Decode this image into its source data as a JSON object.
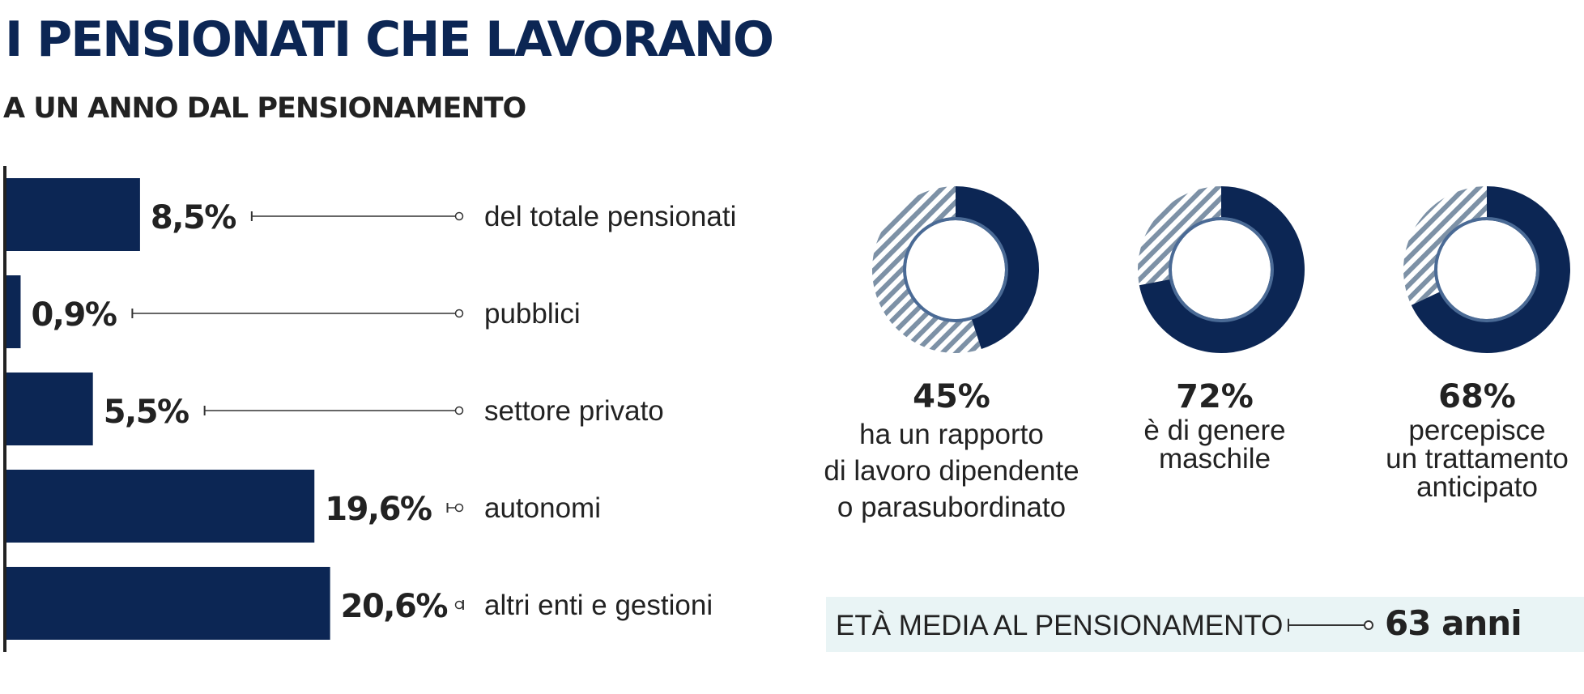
{
  "title": "I PENSIONATI CHE LAVORANO",
  "subtitle": "A UN ANNO DAL PENSIONAMENTO",
  "colors": {
    "navy": "#0c2654",
    "hatch": "#7d91a6",
    "ring_edge": "#4a6a95",
    "age_box": "#e9f4f5",
    "text": "#222222"
  },
  "chart_data": [
    {
      "type": "bar",
      "orientation": "horizontal",
      "categories": [
        "del totale pensionati",
        "pubblici",
        "settore privato",
        "autonomi",
        "altri enti e gestioni"
      ],
      "values": [
        8.5,
        0.9,
        5.5,
        19.6,
        20.6
      ],
      "value_labels": [
        "8,5%",
        "0,9%",
        "5,5%",
        "19,6%",
        "20,6%"
      ],
      "unit": "%"
    },
    {
      "type": "pie",
      "style": "donut",
      "slices": [
        {
          "value": 45,
          "value_label": "45%",
          "label": "ha un rapporto\ndi lavoro dipendente\no parasubordinato"
        },
        {
          "value": 72,
          "value_label": "72%",
          "label": "è di genere\nmaschile"
        },
        {
          "value": 68,
          "value_label": "68%",
          "label": "percepisce\nun trattamento\nanticipato"
        }
      ]
    }
  ],
  "age": {
    "label": "ETÀ MEDIA AL PENSIONAMENTO",
    "value": "63 anni"
  }
}
